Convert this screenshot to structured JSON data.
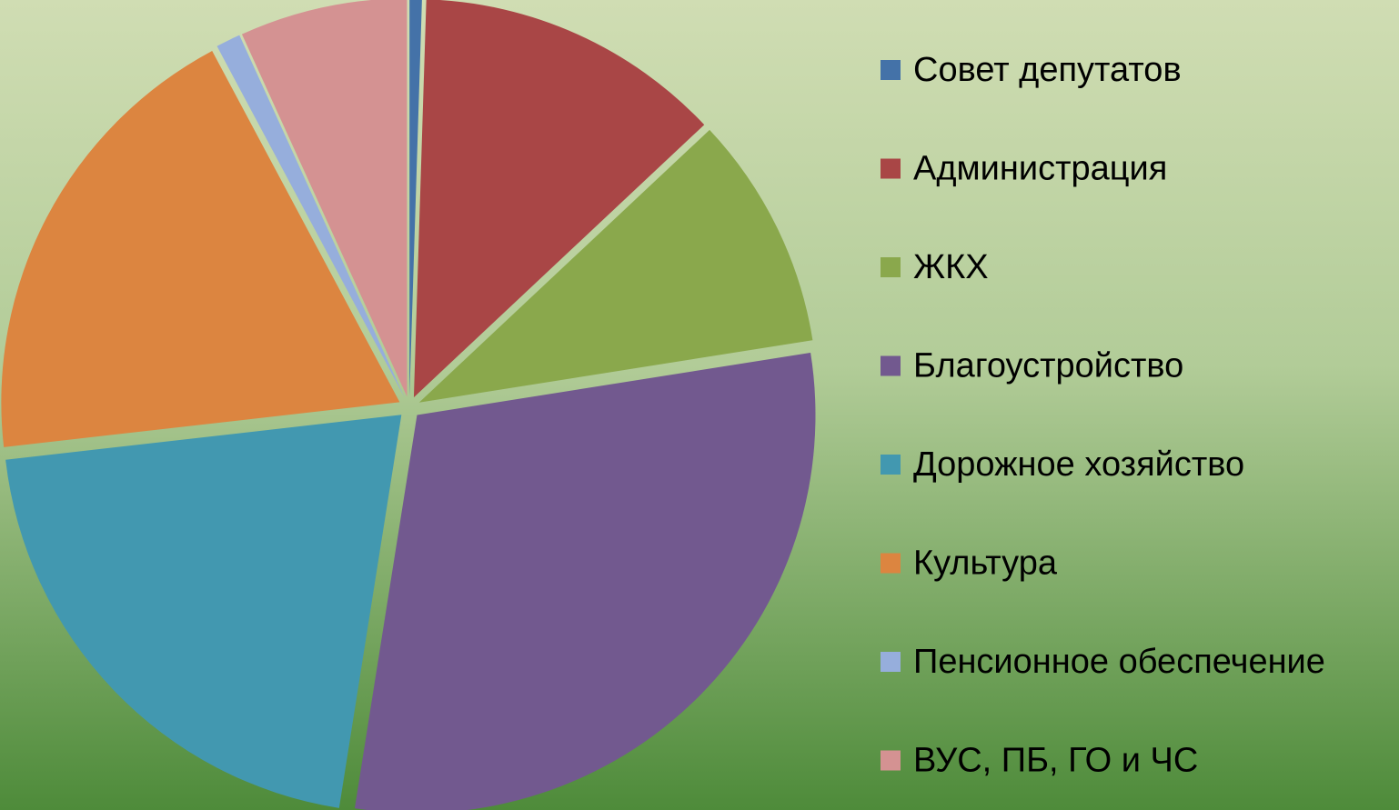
{
  "chart_data": {
    "type": "pie",
    "categories": [
      "Совет депутатов",
      "Администрация",
      "ЖКХ",
      "Благоустройство",
      "Дорожное хозяйство",
      "Культура",
      "Пенсионное обеспечение",
      "ВУС, ПБ, ГО и ЧС"
    ],
    "values": [
      0.5,
      12.5,
      9.5,
      30,
      20.7,
      19,
      1,
      6.8
    ],
    "colors": [
      "#4472a8",
      "#a94646",
      "#8aa84c",
      "#72598f",
      "#4298b0",
      "#dc8540",
      "#96aedc",
      "#d49292"
    ],
    "legend": "right"
  }
}
